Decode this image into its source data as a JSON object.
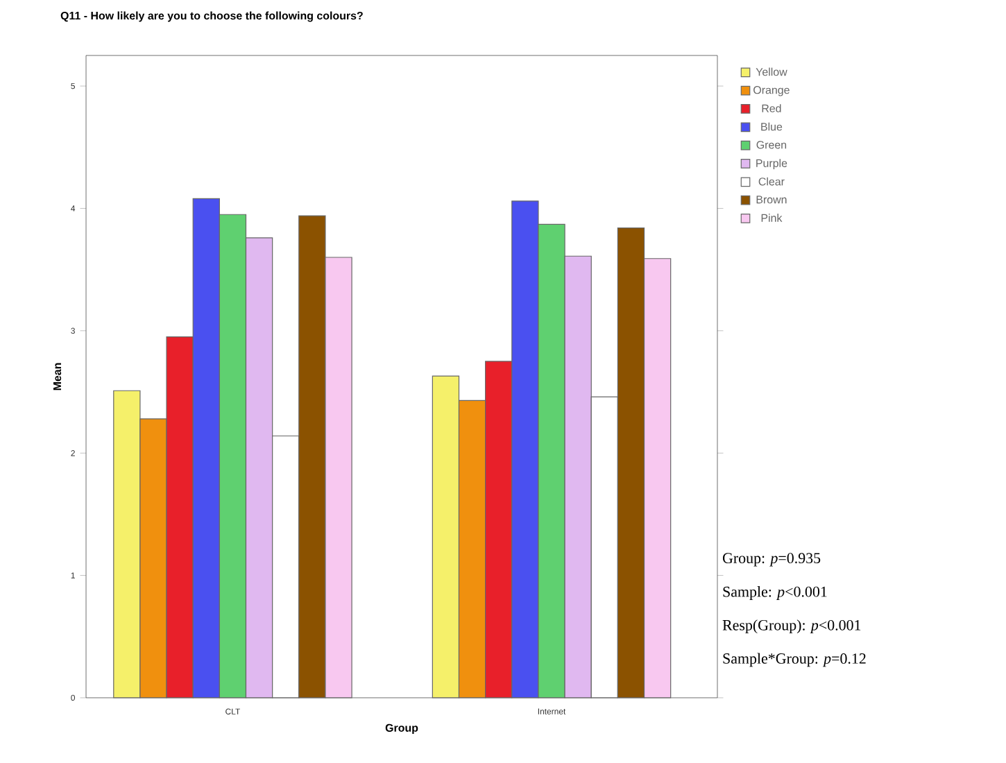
{
  "chart_data": {
    "type": "bar",
    "title": "Q11 - How likely are you to choose the following colours?",
    "xlabel": "Group",
    "ylabel": "Mean",
    "categories": [
      "CLT",
      "Internet"
    ],
    "series": [
      {
        "name": "Yellow",
        "color": "#f5f06a",
        "values": [
          2.51,
          2.63
        ]
      },
      {
        "name": "Orange",
        "color": "#f0900e",
        "values": [
          2.28,
          2.43
        ]
      },
      {
        "name": "Red",
        "color": "#e8202a",
        "values": [
          2.95,
          2.75
        ]
      },
      {
        "name": "Blue",
        "color": "#4a50f0",
        "values": [
          4.08,
          4.06
        ]
      },
      {
        "name": "Green",
        "color": "#5fd070",
        "values": [
          3.95,
          3.87
        ]
      },
      {
        "name": "Purple",
        "color": "#e0b8f0",
        "values": [
          3.76,
          3.61
        ]
      },
      {
        "name": "Clear",
        "color": "#ffffff",
        "values": [
          2.14,
          2.46
        ]
      },
      {
        "name": "Brown",
        "color": "#8b5200",
        "values": [
          3.94,
          3.84
        ]
      },
      {
        "name": "Pink",
        "color": "#f8c8f0",
        "values": [
          3.6,
          3.59
        ]
      }
    ],
    "ylim": [
      0,
      5.25
    ],
    "yticks": [
      0,
      1,
      2,
      3,
      4,
      5
    ],
    "legend": "right",
    "annotations": [
      "Group: *p*=0.935",
      "Sample: *p*<0.001",
      "Resp(Group): *p*<0.001",
      "Sample*Group: *p*=0.12"
    ]
  }
}
